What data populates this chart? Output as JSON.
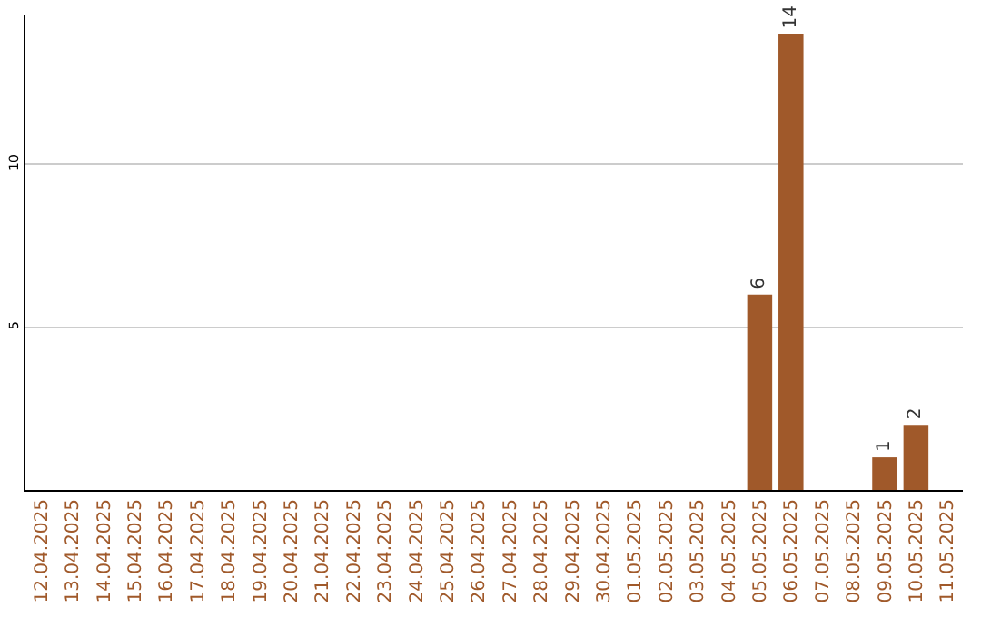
{
  "chart_data": {
    "type": "bar",
    "categories": [
      "12.04.2025",
      "13.04.2025",
      "14.04.2025",
      "15.04.2025",
      "16.04.2025",
      "17.04.2025",
      "18.04.2025",
      "19.04.2025",
      "20.04.2025",
      "21.04.2025",
      "22.04.2025",
      "23.04.2025",
      "24.04.2025",
      "25.04.2025",
      "26.04.2025",
      "27.04.2025",
      "28.04.2025",
      "29.04.2025",
      "30.04.2025",
      "01.05.2025",
      "02.05.2025",
      "03.05.2025",
      "04.05.2025",
      "05.05.2025",
      "06.05.2025",
      "07.05.2025",
      "08.05.2025",
      "09.05.2025",
      "10.05.2025",
      "11.05.2025"
    ],
    "values": [
      0,
      0,
      0,
      0,
      0,
      0,
      0,
      0,
      0,
      0,
      0,
      0,
      0,
      0,
      0,
      0,
      0,
      0,
      0,
      0,
      0,
      0,
      0,
      6,
      14,
      0,
      0,
      1,
      2,
      0
    ],
    "value_labels": [
      null,
      null,
      null,
      null,
      null,
      null,
      null,
      null,
      null,
      null,
      null,
      null,
      null,
      null,
      null,
      null,
      null,
      null,
      null,
      null,
      null,
      null,
      null,
      "6",
      "14",
      null,
      null,
      "1",
      "2",
      null
    ],
    "color": "#a0592a",
    "ylim": [
      0,
      14.6
    ],
    "yticks": [
      5,
      10
    ],
    "grid": "y",
    "legend": false
  }
}
